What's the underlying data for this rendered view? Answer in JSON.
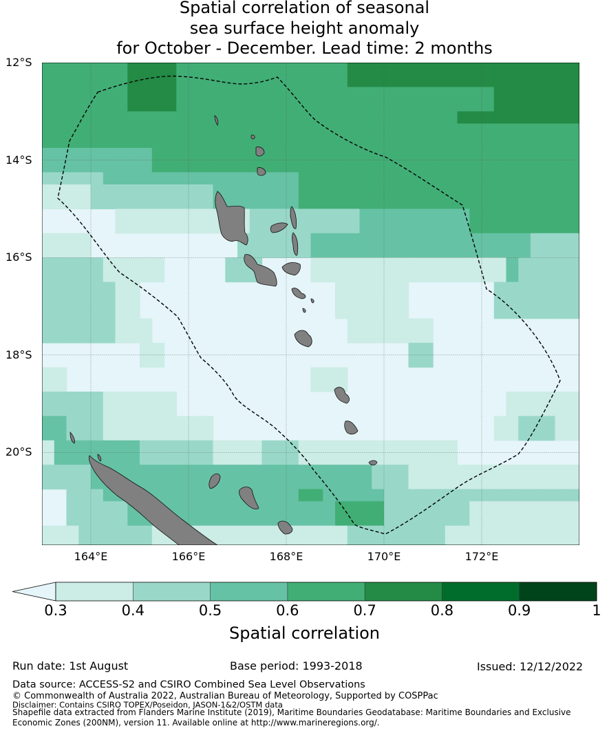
{
  "title": {
    "line1": "Spatial correlation of seasonal",
    "line2": "sea surface height anomaly",
    "line3": "for October - December. Lead time: 2 months"
  },
  "map": {
    "extent": {
      "lon_min": 163,
      "lon_max": 174,
      "lat_min": -21.9,
      "lat_max": -12
    },
    "lat_labels": [
      {
        "lat": -12,
        "text": "12°S"
      },
      {
        "lat": -14,
        "text": "14°S"
      },
      {
        "lat": -16,
        "text": "16°S"
      },
      {
        "lat": -18,
        "text": "18°S"
      },
      {
        "lat": -20,
        "text": "20°S"
      }
    ],
    "lon_labels": [
      {
        "lon": 164,
        "text": "164°E"
      },
      {
        "lon": 166,
        "text": "166°E"
      },
      {
        "lon": 168,
        "text": "168°E"
      },
      {
        "lon": 170,
        "text": "170°E"
      },
      {
        "lon": 172,
        "text": "172°E"
      }
    ],
    "land_color": "#808080",
    "eez_boundary": "dashed"
  },
  "colorbar": {
    "label": "Spatial correlation",
    "ticks": [
      "0.3",
      "0.4",
      "0.5",
      "0.6",
      "0.7",
      "0.8",
      "0.9",
      "1"
    ],
    "under_color": "#e5f5f9",
    "colors": [
      "#ccece6",
      "#99d8c9",
      "#66c2a4",
      "#41ae76",
      "#238b45",
      "#006d2c",
      "#00441b"
    ]
  },
  "footer": {
    "run_date": "Run date: 1st August",
    "base_period": "Base period: 1993-2018",
    "issued": "Issued: 12/12/2022",
    "data_source": "Data source: ACCESS-S2 and CSIRO Combined Sea Level Observations",
    "copyright": "© Commonwealth of Australia 2022, Australian Bureau of Meteorology, Supported by COSPPac",
    "disclaimer": "Disclaimer: Contains CSIRO TOPEX/Poseidon, JASON-1&2/OSTM data",
    "shapefile1": "Shapefile data extracted from Flanders Marine Institute (2019), Maritime Boundaries Geodatabase: Maritime Boundaries and Exclusive",
    "shapefile2": "Economic Zones (200NM), version 11. Available online at http://www.marineregions.org/."
  }
}
